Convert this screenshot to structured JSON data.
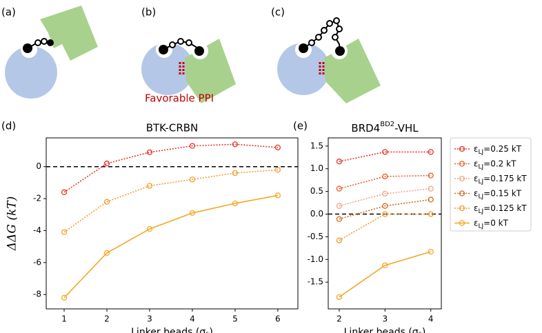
{
  "figure": {
    "panel_labels": [
      "(a)",
      "(b)",
      "(c)"
    ],
    "annotation": "Favorable PPI"
  },
  "chart_data": [
    {
      "type": "line",
      "panel_label": "(d)",
      "title": "BTK-CRBN",
      "x_label": "Linker beads (σₛ)",
      "y_label": "ΔΔG (kT)",
      "x": [
        1,
        2,
        3,
        4,
        5,
        6
      ],
      "xlim": [
        0.58,
        6.47
      ],
      "xticks": [
        1,
        2,
        3,
        4,
        5,
        6
      ],
      "ylim": [
        -8.9,
        1.8
      ],
      "yticks": [
        0,
        -2,
        -4,
        -6,
        -8
      ],
      "reference_line": 0,
      "series": [
        {
          "name": "εLJ=0.25 kT",
          "color": "#e8322a",
          "linestyle": "dotted",
          "values": [
            -1.6,
            0.2,
            0.9,
            1.3,
            1.4,
            1.2
          ]
        },
        {
          "name": "εLJ=0.125 kT",
          "color": "#f39c2a",
          "linestyle": "dotted",
          "values": [
            -4.1,
            -2.2,
            -1.2,
            -0.8,
            -0.4,
            -0.2
          ]
        },
        {
          "name": "εLJ=0 kT",
          "color": "#f5a623",
          "linestyle": "solid",
          "values": [
            -8.2,
            -5.4,
            -3.9,
            -2.9,
            -2.3,
            -1.8
          ]
        }
      ]
    },
    {
      "type": "line",
      "panel_label": "(e)",
      "title_parts": [
        "BRD4",
        "BD2",
        "-VHL"
      ],
      "x_label": "Linker beads (σₛ)",
      "x": [
        2,
        3,
        4
      ],
      "xlim": [
        1.76,
        4.23
      ],
      "xticks": [
        2,
        3,
        4
      ],
      "ylim": [
        -2.09,
        1.68
      ],
      "yticks": [
        1.5,
        {
          "value": 1,
          "label": "1.0"
        },
        0.5,
        {
          "value": 0,
          "label": "0.0"
        },
        -0.5,
        {
          "value": -1,
          "label": "-1.0"
        },
        -1.5
      ],
      "reference_line": 0,
      "legend": "right",
      "series": [
        {
          "name": "εLJ=0.25 kT",
          "color": "#e8322a",
          "linestyle": "dotted",
          "values": [
            1.16,
            1.37,
            1.37
          ]
        },
        {
          "name": "εLJ=0.2 kT",
          "color": "#f05a28",
          "linestyle": "dotted",
          "values": [
            0.56,
            0.83,
            0.85
          ]
        },
        {
          "name": "εLJ=0.175 kT",
          "color": "#f4a582",
          "linestyle": "dotted",
          "values": [
            0.18,
            0.45,
            0.56
          ]
        },
        {
          "name": "εLJ=0.15 kT",
          "color": "#d2691e",
          "linestyle": "dotted",
          "values": [
            -0.11,
            0.18,
            0.32
          ]
        },
        {
          "name": "εLJ=0.125 kT",
          "color": "#f39c2a",
          "linestyle": "dotted",
          "values": [
            -0.58,
            0,
            0
          ]
        },
        {
          "name": "εLJ=0 kT",
          "color": "#f5a623",
          "linestyle": "solid",
          "values": [
            -1.83,
            -1.13,
            -0.83
          ]
        }
      ]
    }
  ]
}
